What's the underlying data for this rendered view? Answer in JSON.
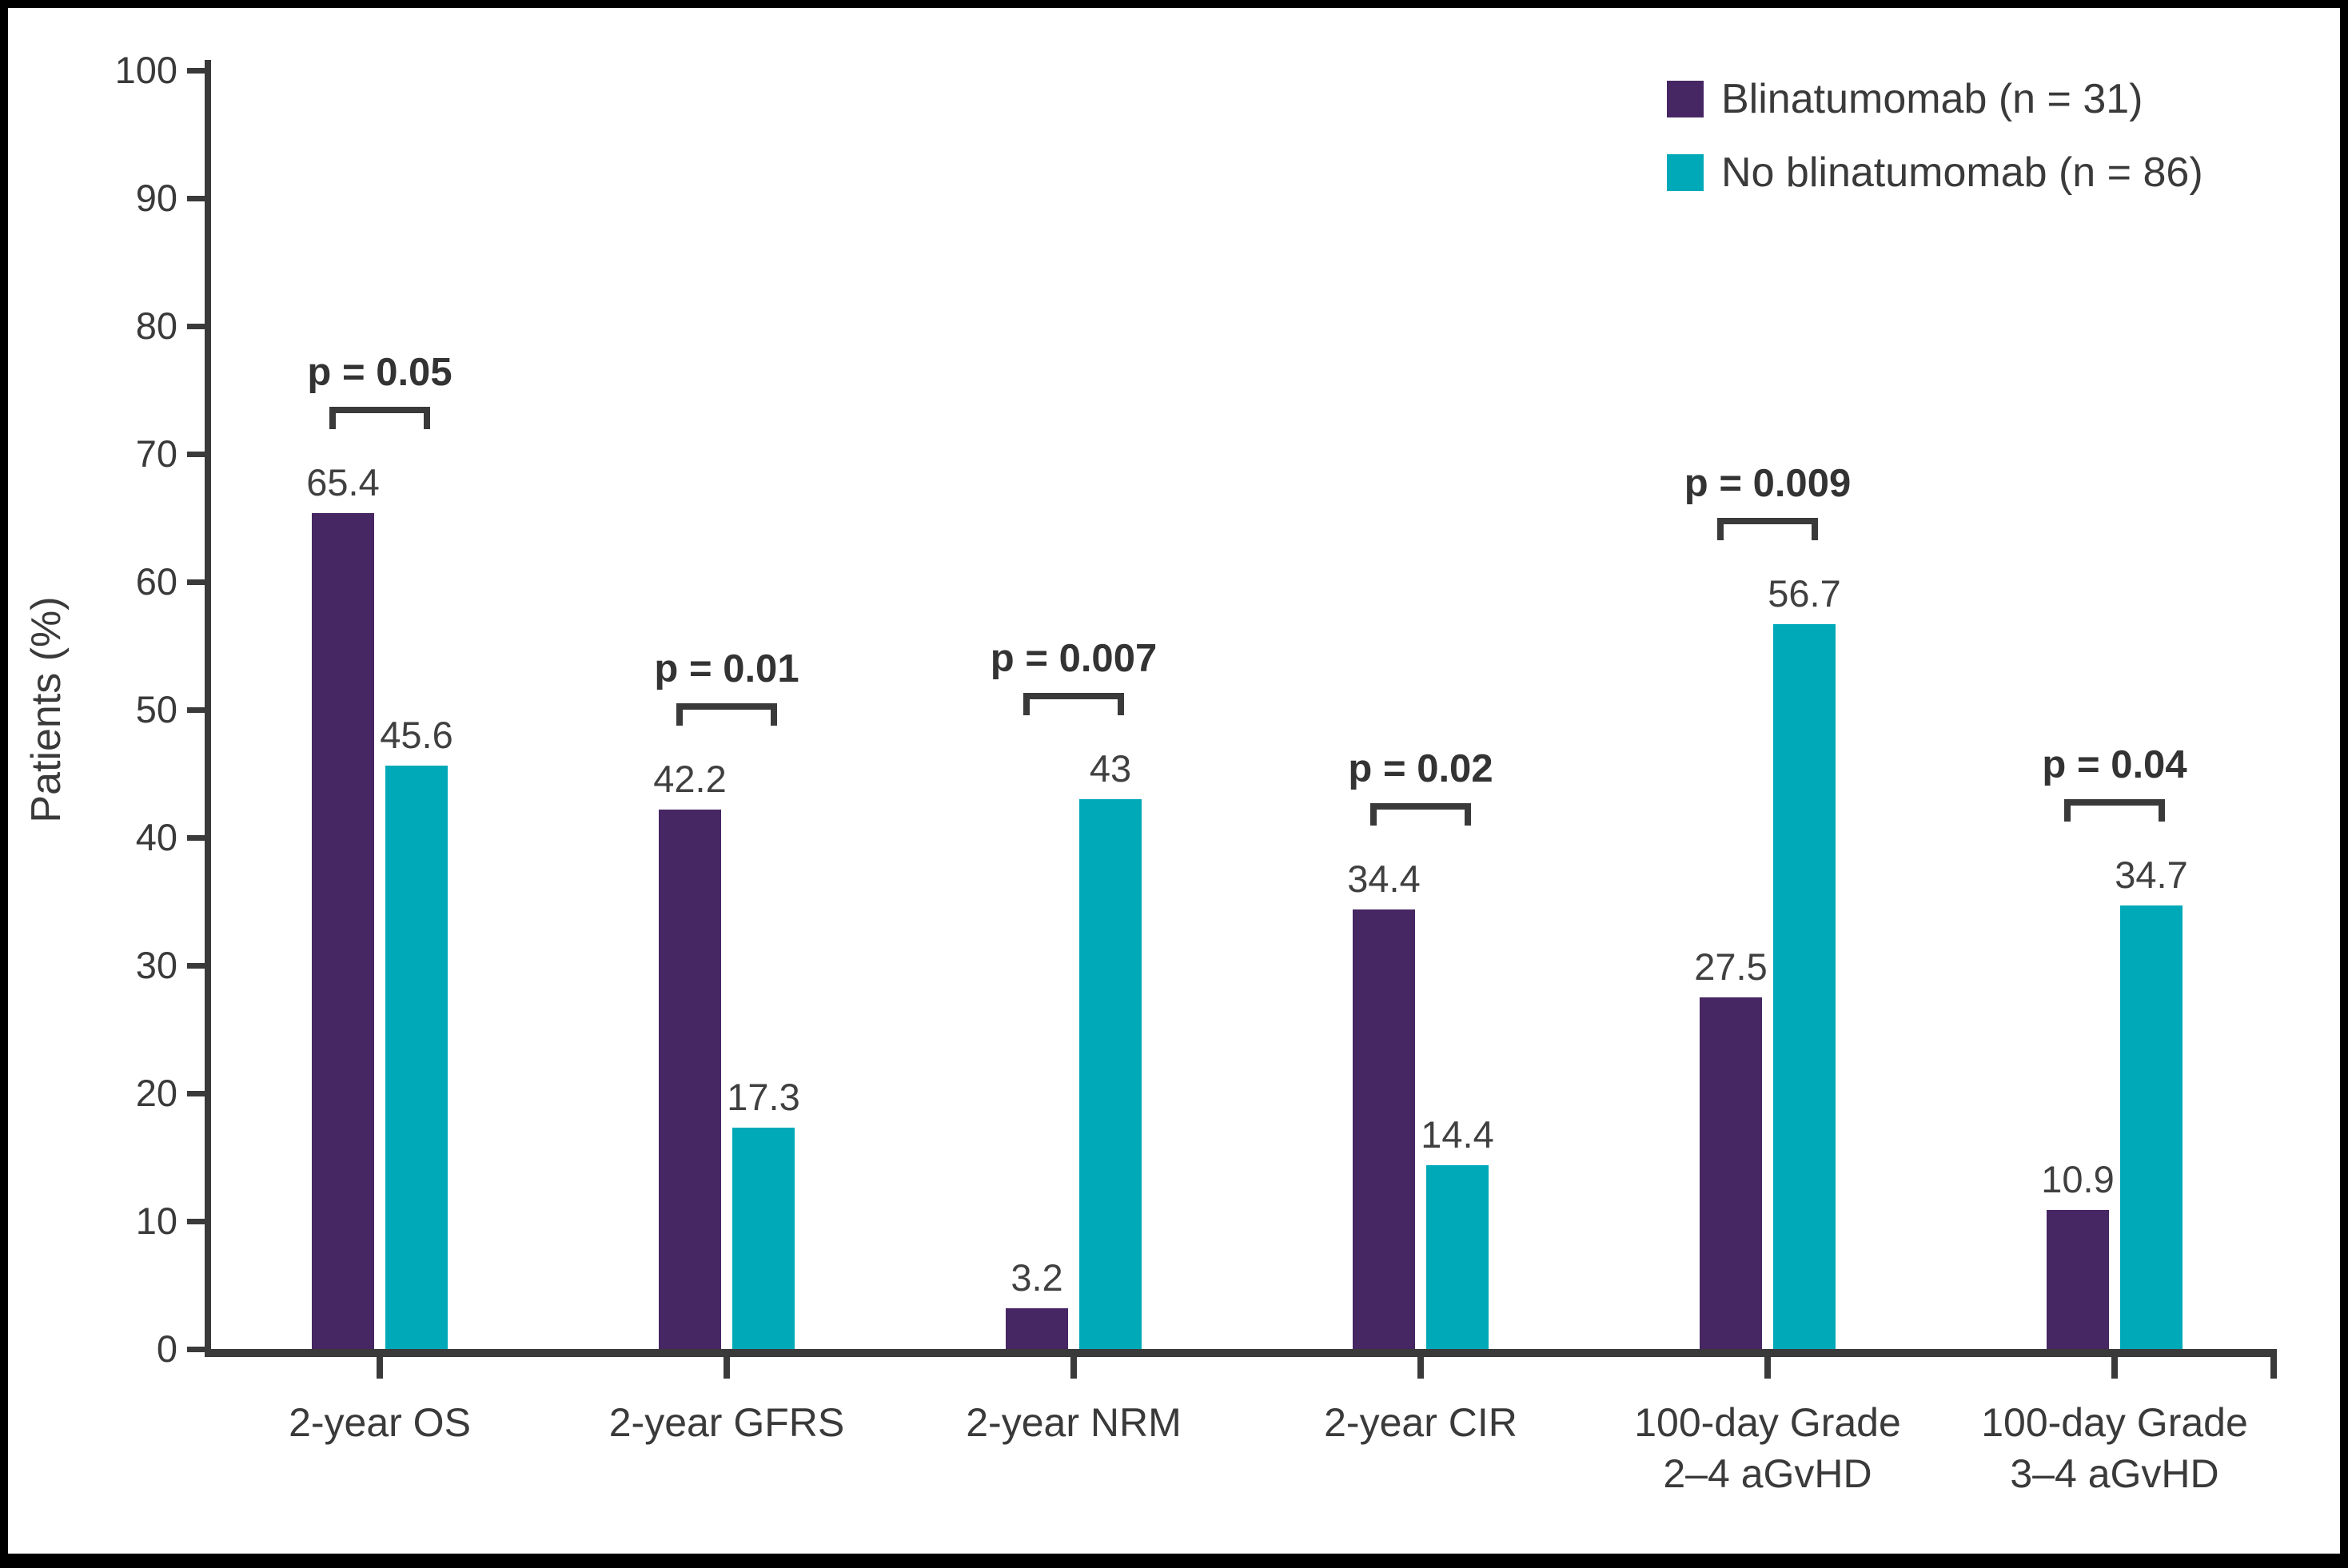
{
  "colors": {
    "background": "#ffffff",
    "frame": "#000000",
    "axis": "#3a3a3a",
    "text": "#3a3a3a",
    "blinatumomab": "#462663",
    "no_blinatumomab": "#00a9b8"
  },
  "legend": {
    "items": [
      {
        "label": "Blinatumomab (n = 31)",
        "color": "#462663"
      },
      {
        "label": "No blinatumomab (n = 86)",
        "color": "#00a9b8"
      }
    ]
  },
  "chart_data": {
    "type": "bar",
    "title": "",
    "xlabel": "",
    "ylabel": "Patients (%)",
    "ylim": [
      0,
      100
    ],
    "yticks": [
      0,
      10,
      20,
      30,
      40,
      50,
      60,
      70,
      80,
      90,
      100
    ],
    "grid": false,
    "legend_position": "top-right",
    "categories": [
      "2-year OS",
      "2-year GFRS",
      "2-year NRM",
      "2-year CIR",
      "100-day Grade\n2–4 aGvHD",
      "100-day Grade\n3–4 aGvHD"
    ],
    "series": [
      {
        "name": "Blinatumomab (n = 31)",
        "color": "#462663",
        "values": [
          65.4,
          42.2,
          3.2,
          34.4,
          27.5,
          10.9
        ],
        "labels": [
          "65.4",
          "42.2",
          "3.2",
          "34.4",
          "27.5",
          "10.9"
        ]
      },
      {
        "name": "No blinatumomab (n = 86)",
        "color": "#00a9b8",
        "values": [
          45.6,
          17.3,
          43,
          14.4,
          56.7,
          34.7
        ],
        "labels": [
          "45.6",
          "17.3",
          "43",
          "14.4",
          "56.7",
          "34.7"
        ]
      }
    ],
    "p_values": [
      "p = 0.05",
      "p = 0.01",
      "p = 0.007",
      "p = 0.02",
      "p = 0.009",
      "p = 0.04"
    ]
  }
}
